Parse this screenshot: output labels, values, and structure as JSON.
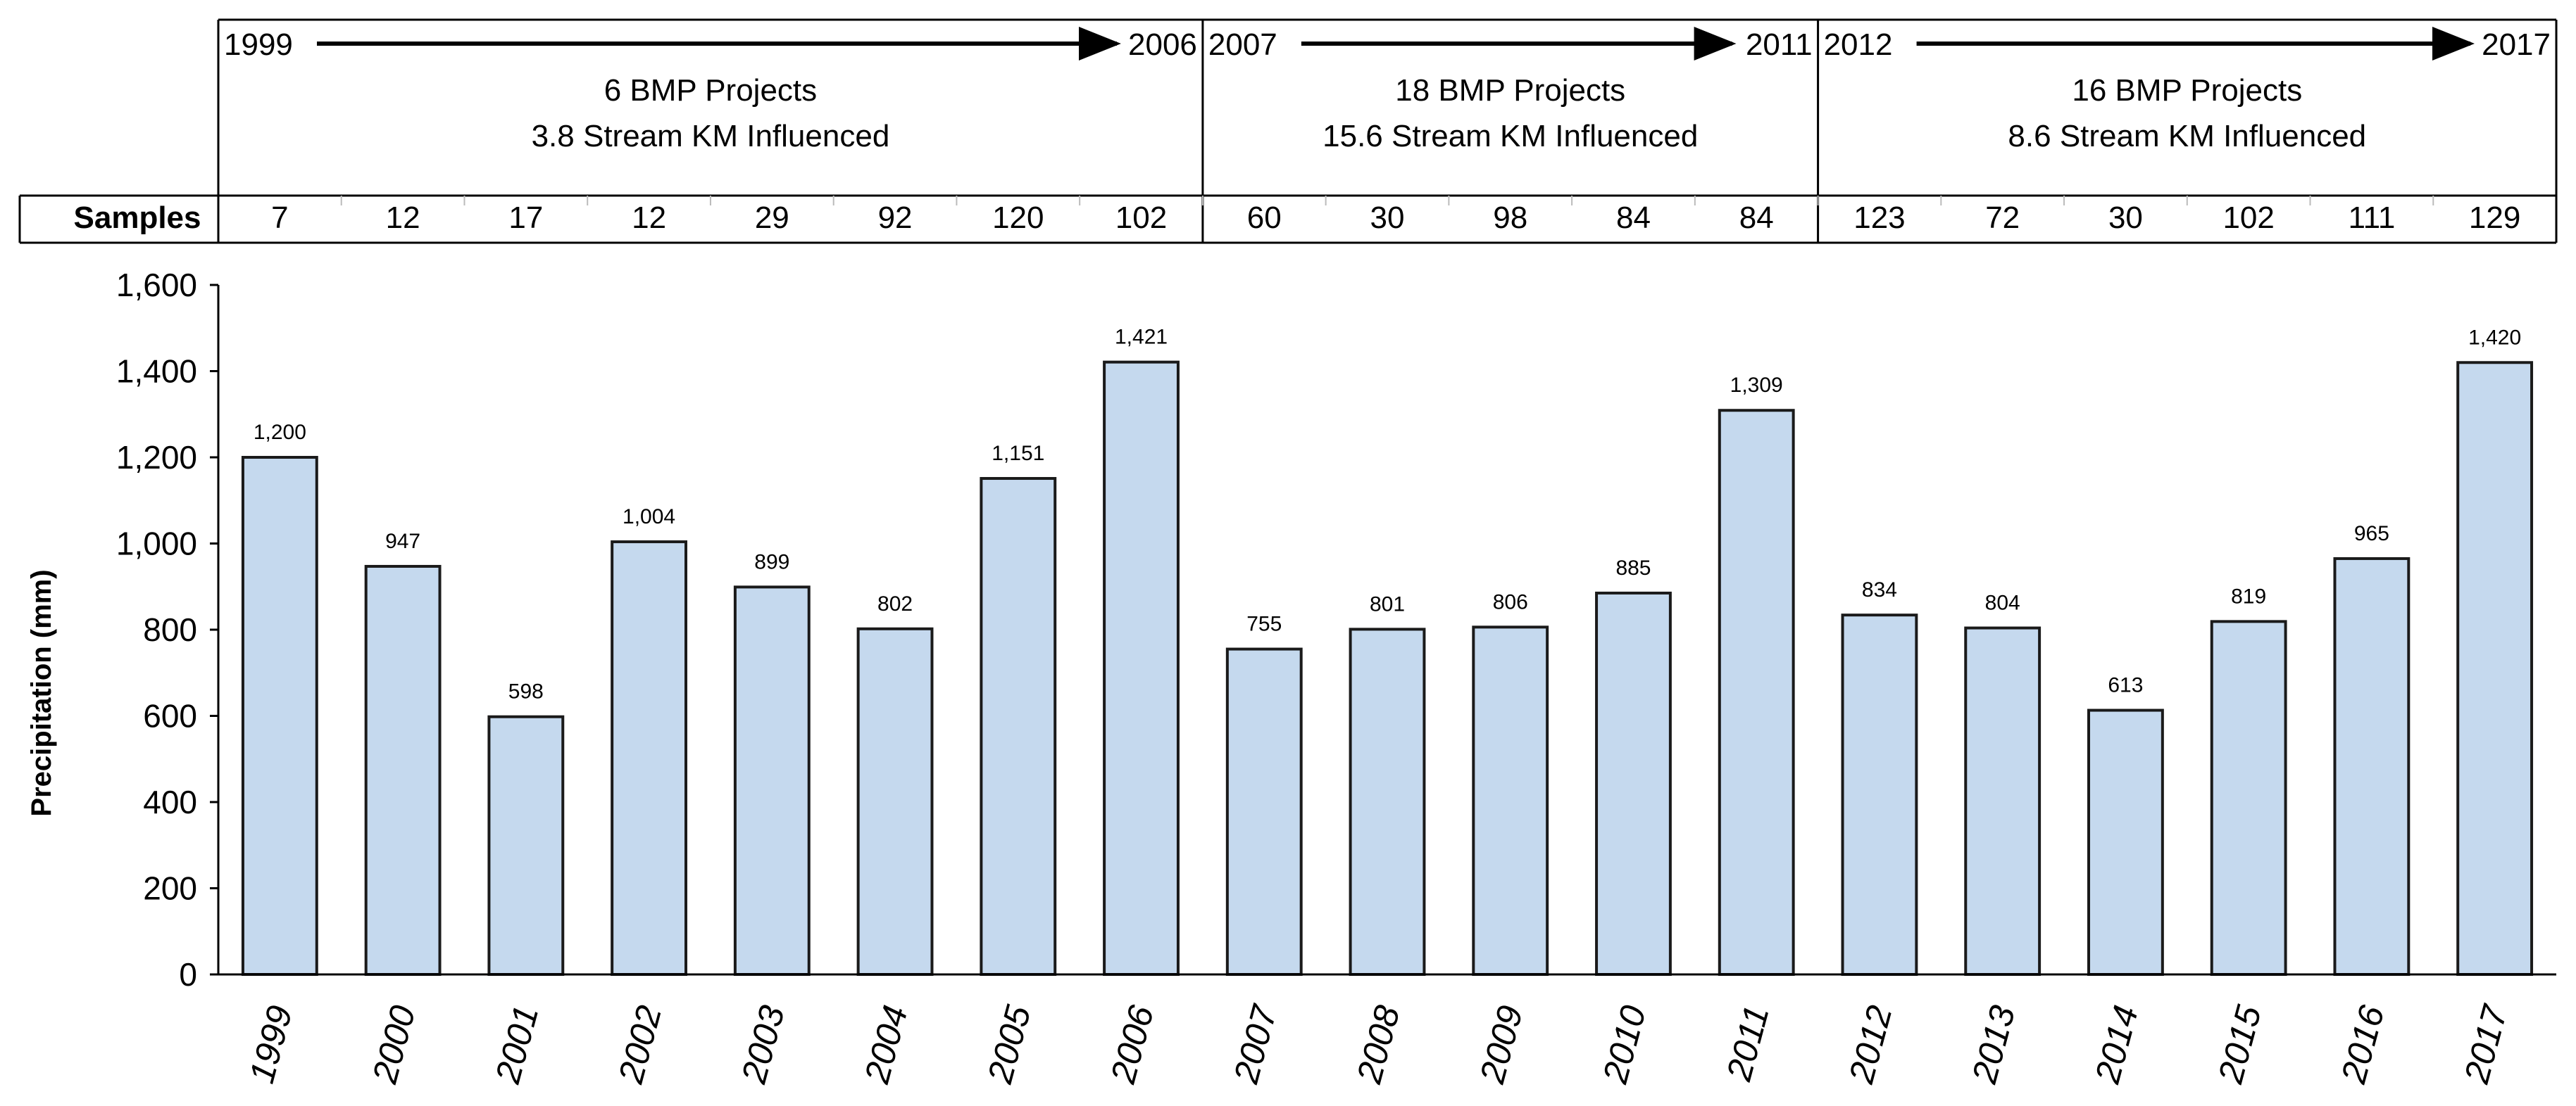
{
  "chart_data": {
    "type": "bar",
    "title": "",
    "xlabel": "",
    "ylabel": "Precipitation (mm)",
    "ylim": [
      0,
      1600
    ],
    "yticks": [
      0,
      200,
      400,
      600,
      800,
      1000,
      1200,
      1400,
      1600
    ],
    "ytick_labels": [
      "0",
      "200",
      "400",
      "600",
      "800",
      "1,000",
      "1,200",
      "1,400",
      "1,600"
    ],
    "categories": [
      "1999",
      "2000",
      "2001",
      "2002",
      "2003",
      "2004",
      "2005",
      "2006",
      "2007",
      "2008",
      "2009",
      "2010",
      "2011",
      "2012",
      "2013",
      "2014",
      "2015",
      "2016",
      "2017"
    ],
    "values": [
      1200,
      947,
      598,
      1004,
      899,
      802,
      1151,
      1421,
      755,
      801,
      806,
      885,
      1309,
      834,
      804,
      613,
      819,
      965,
      1420
    ],
    "value_labels": [
      "1,200",
      "947",
      "598",
      "1,004",
      "899",
      "802",
      "1,151",
      "1,421",
      "755",
      "801",
      "806",
      "885",
      "1,309",
      "834",
      "804",
      "613",
      "819",
      "965",
      "1,420"
    ],
    "bar_color": "#c5d9ee",
    "bar_edge_color": "#1a1a1a",
    "samples_label": "Samples",
    "samples": [
      "7",
      "12",
      "17",
      "12",
      "29",
      "92",
      "120",
      "102",
      "60",
      "30",
      "98",
      "84",
      "84",
      "123",
      "72",
      "30",
      "102",
      "111",
      "129"
    ],
    "periods": [
      {
        "start": "1999",
        "end": "2006",
        "start_index": 0,
        "end_index": 7,
        "line1": "6 BMP Projects",
        "line2": "3.8 Stream KM Influenced"
      },
      {
        "start": "2007",
        "end": "2011",
        "start_index": 8,
        "end_index": 12,
        "line1": "18 BMP Projects",
        "line2": "15.6 Stream KM Influenced"
      },
      {
        "start": "2012",
        "end": "2017",
        "start_index": 13,
        "end_index": 18,
        "line1": "16 BMP Projects",
        "line2": "8.6 Stream KM Influenced"
      }
    ]
  }
}
